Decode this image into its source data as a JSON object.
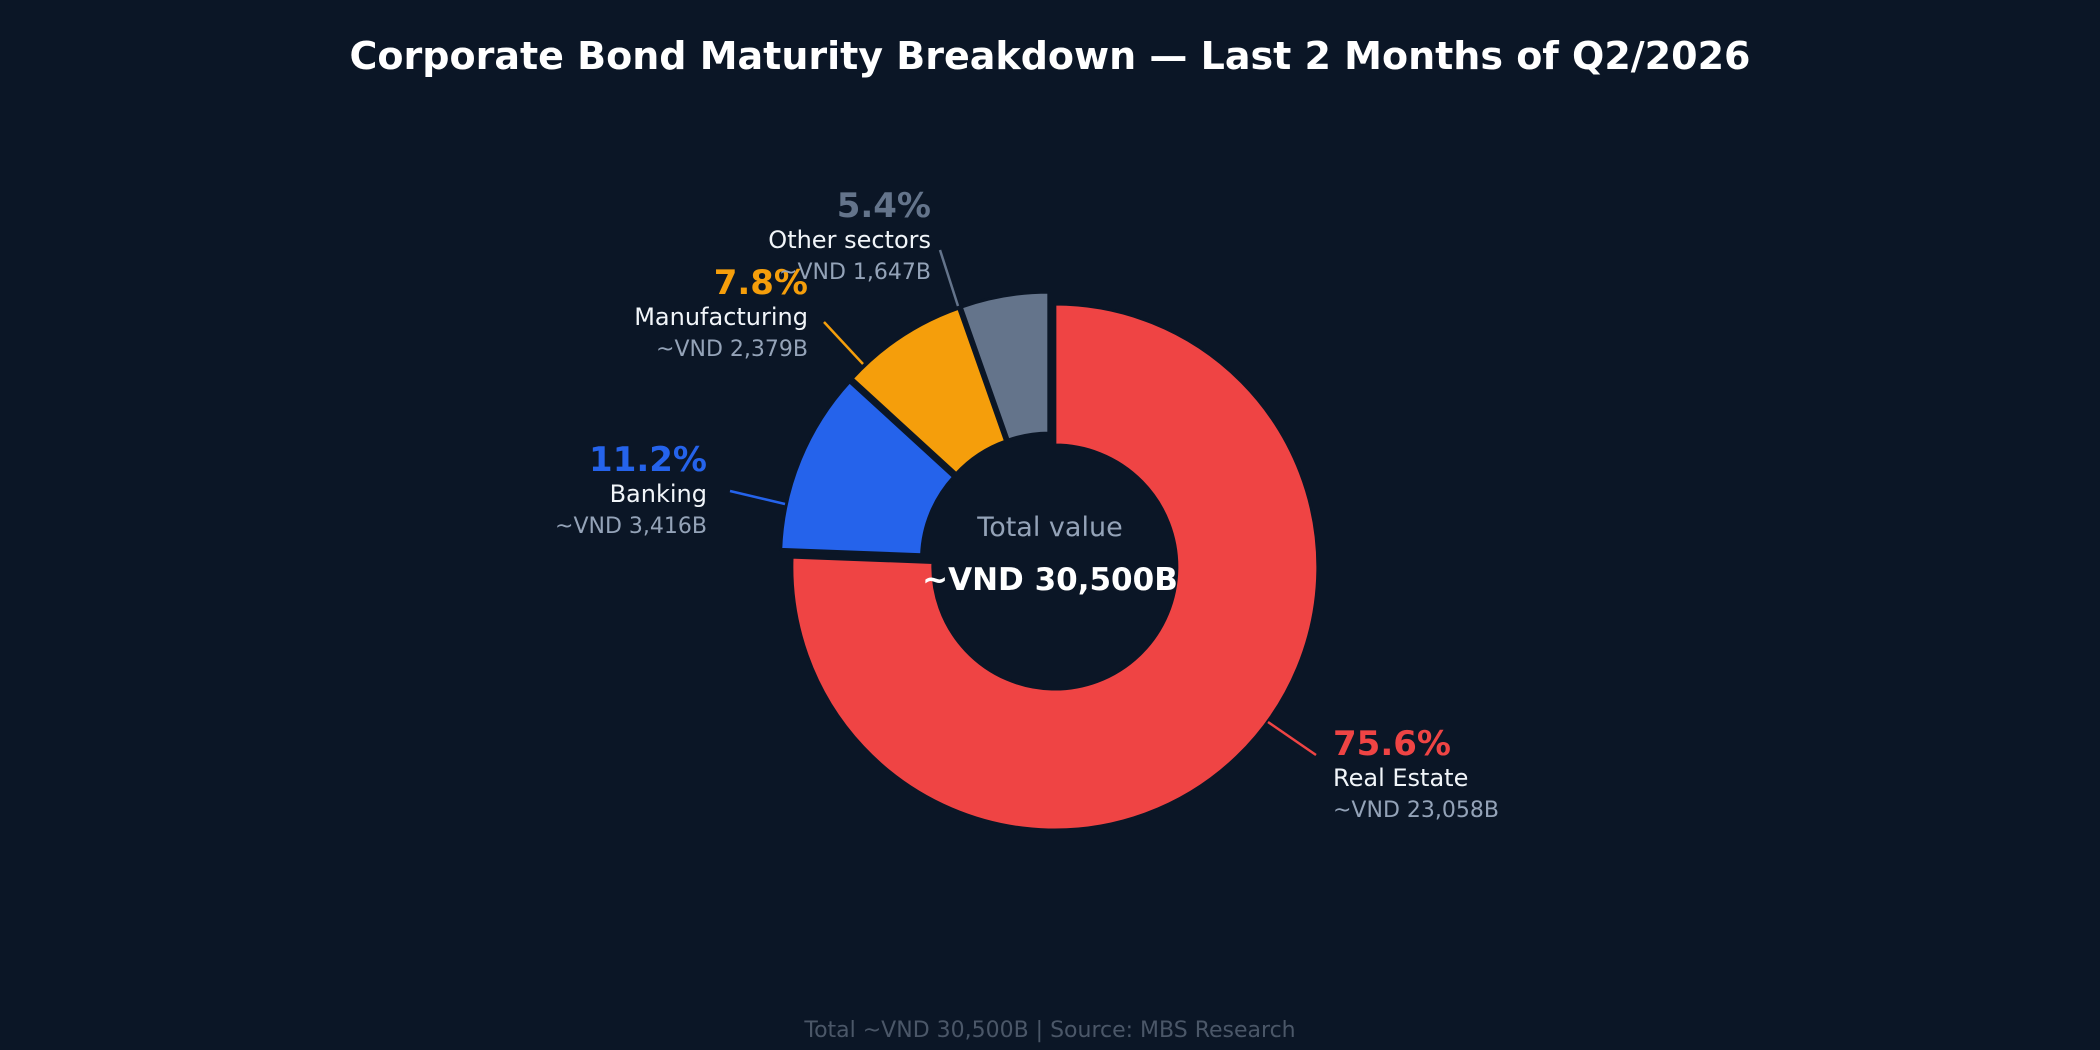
{
  "chart_data": {
    "type": "pie",
    "title": "Corporate Bond Maturity Breakdown — Last 2 Months of Q2/2026",
    "center_label": "Total value",
    "center_value": "~VND 30,500B",
    "footer": "Total ~VND 30,500B  |  Source: MBS Research",
    "slices": [
      {
        "name": "Real Estate",
        "percent": 75.6,
        "percent_label": "75.6%",
        "value": 23058,
        "value_label": "~VND 23,058B",
        "color": "#ef4444"
      },
      {
        "name": "Banking",
        "percent": 11.2,
        "percent_label": "11.2%",
        "value": 3416,
        "value_label": "~VND 3,416B",
        "color": "#2563eb"
      },
      {
        "name": "Manufacturing",
        "percent": 7.8,
        "percent_label": "7.8%",
        "value": 2379,
        "value_label": "~VND 2,379B",
        "color": "#f59e0b"
      },
      {
        "name": "Other sectors",
        "percent": 5.4,
        "percent_label": "5.4%",
        "value": 1647,
        "value_label": "~VND 1,647B",
        "color": "#64748b"
      }
    ]
  }
}
